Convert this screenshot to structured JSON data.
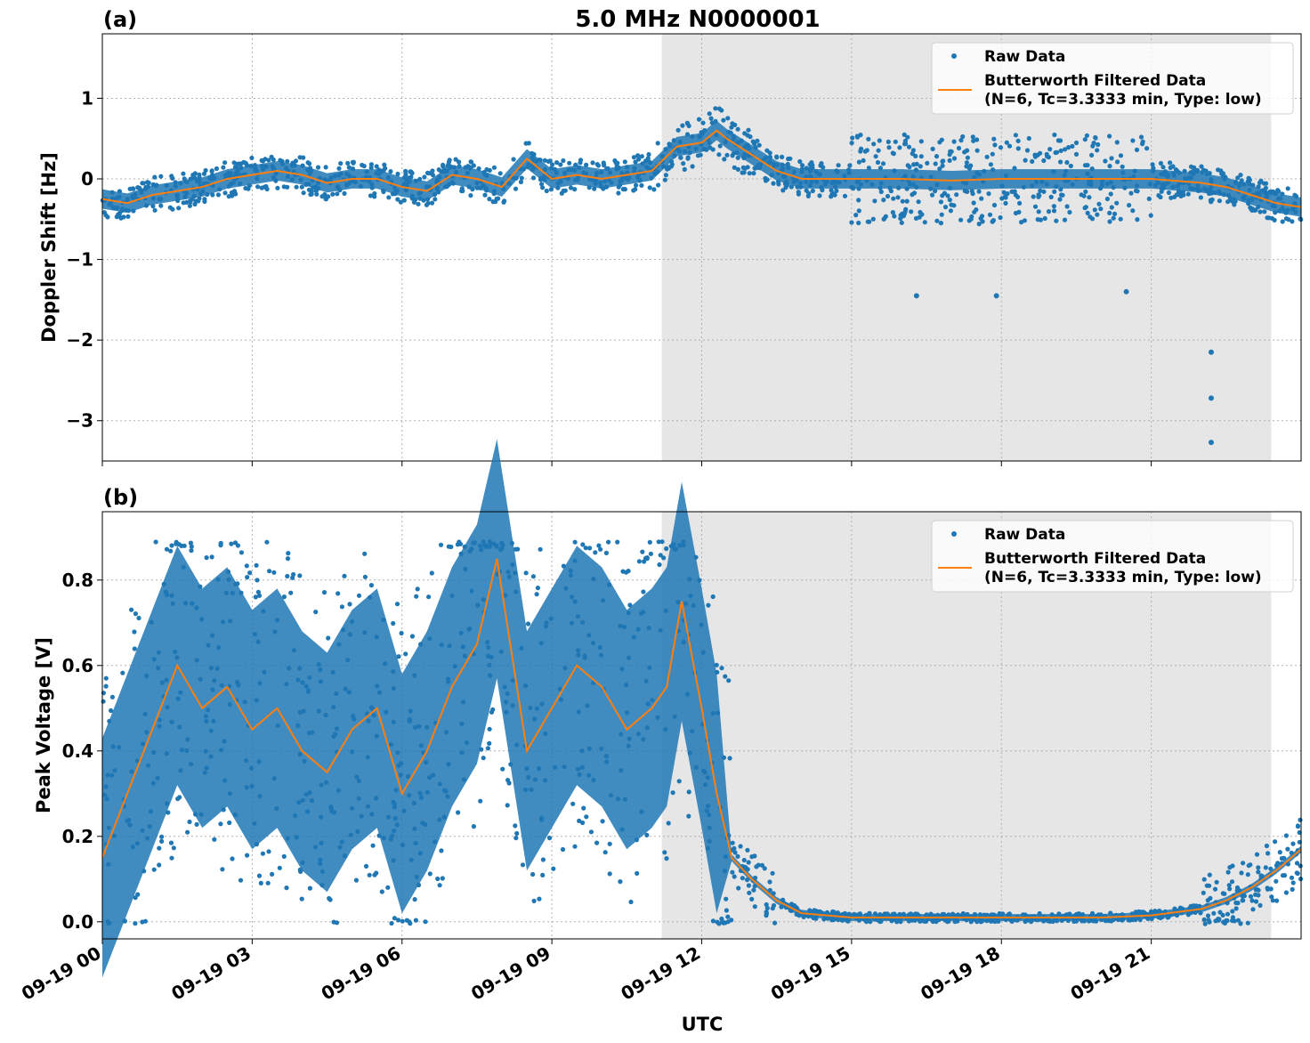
{
  "figure": {
    "title": "5.0 MHz N0000001",
    "xlabel": "UTC",
    "x_ticks": [
      "09-19 00",
      "09-19 03",
      "09-19 06",
      "09-19 09",
      "09-19 12",
      "09-19 15",
      "09-19 18",
      "09-19 21"
    ],
    "colors": {
      "raw": "#1f77b4",
      "filtered": "#ff7f0e",
      "shade": "#e6e6e6",
      "grid": "#b0b0b0"
    }
  },
  "chart_data": [
    {
      "type": "scatter",
      "panel_label": "(a)",
      "ylabel": "Doppler Shift [Hz]",
      "xlim_hours": [
        0,
        24
      ],
      "ylim": [
        -3.5,
        1.8
      ],
      "y_ticks": [
        "−3",
        "−2",
        "−1",
        "0",
        "1"
      ],
      "y_tick_values": [
        -3,
        -2,
        -1,
        0,
        1
      ],
      "grid": true,
      "legend_position": "top-right",
      "legend": [
        "Raw Data",
        "Butterworth Filtered Data",
        "(N=6, Tc=3.3333 min, Type: low)"
      ],
      "shaded_span_hours": [
        11.2,
        23.4
      ],
      "series": [
        {
          "name": "Raw Data",
          "style": "dots"
        },
        {
          "name": "Butterworth Filtered Data",
          "style": "line",
          "x": [
            0,
            0.5,
            1,
            1.5,
            2,
            2.5,
            3,
            3.5,
            4,
            4.5,
            5,
            5.5,
            6,
            6.5,
            7,
            7.5,
            8,
            8.5,
            9,
            9.5,
            10,
            10.5,
            11,
            11.5,
            12,
            12.3,
            12.5,
            13,
            13.5,
            14,
            15,
            16,
            17,
            18,
            19,
            20,
            21,
            22,
            22.5,
            23,
            23.5,
            24
          ],
          "y": [
            -0.25,
            -0.3,
            -0.2,
            -0.15,
            -0.1,
            0.0,
            0.05,
            0.1,
            0.05,
            -0.05,
            0.0,
            0.0,
            -0.1,
            -0.15,
            0.05,
            0.0,
            -0.1,
            0.25,
            0.0,
            0.05,
            0.0,
            0.05,
            0.1,
            0.4,
            0.45,
            0.6,
            0.5,
            0.3,
            0.1,
            0.0,
            0.0,
            0.0,
            -0.02,
            0.0,
            0.0,
            0.0,
            0.0,
            -0.05,
            -0.1,
            -0.2,
            -0.3,
            -0.35
          ]
        },
        {
          "name": "outliers",
          "style": "dots",
          "x": [
            22.2,
            22.2,
            22.2,
            16.3,
            17.9,
            20.5
          ],
          "y": [
            -2.15,
            -2.72,
            -3.27,
            -1.45,
            -1.45,
            -1.4
          ]
        }
      ]
    },
    {
      "type": "scatter",
      "panel_label": "(b)",
      "ylabel": "Peak Voltage [V]",
      "xlim_hours": [
        0,
        24
      ],
      "ylim": [
        -0.04,
        0.96
      ],
      "y_ticks": [
        "0.0",
        "0.2",
        "0.4",
        "0.6",
        "0.8"
      ],
      "y_tick_values": [
        0.0,
        0.2,
        0.4,
        0.6,
        0.8
      ],
      "grid": true,
      "legend_position": "top-right",
      "legend": [
        "Raw Data",
        "Butterworth Filtered Data",
        "(N=6, Tc=3.3333 min, Type: low)"
      ],
      "shaded_span_hours": [
        11.2,
        23.4
      ],
      "series": [
        {
          "name": "Raw Data",
          "style": "dots"
        },
        {
          "name": "Butterworth Filtered Data",
          "style": "line",
          "x": [
            0,
            0.5,
            1,
            1.5,
            2,
            2.5,
            3,
            3.5,
            4,
            4.5,
            5,
            5.5,
            6,
            6.5,
            7,
            7.5,
            7.9,
            8.5,
            9,
            9.5,
            10,
            10.5,
            11,
            11.3,
            11.6,
            12,
            12.3,
            12.6,
            13,
            13.5,
            14,
            15,
            16,
            17,
            18,
            19,
            20,
            21,
            22,
            22.5,
            23,
            23.5,
            24
          ],
          "y": [
            0.15,
            0.3,
            0.45,
            0.6,
            0.5,
            0.55,
            0.45,
            0.5,
            0.4,
            0.35,
            0.45,
            0.5,
            0.3,
            0.4,
            0.55,
            0.65,
            0.85,
            0.4,
            0.5,
            0.6,
            0.55,
            0.45,
            0.5,
            0.55,
            0.75,
            0.5,
            0.3,
            0.15,
            0.1,
            0.05,
            0.02,
            0.01,
            0.01,
            0.01,
            0.01,
            0.01,
            0.01,
            0.015,
            0.03,
            0.05,
            0.08,
            0.12,
            0.17
          ]
        }
      ]
    }
  ]
}
